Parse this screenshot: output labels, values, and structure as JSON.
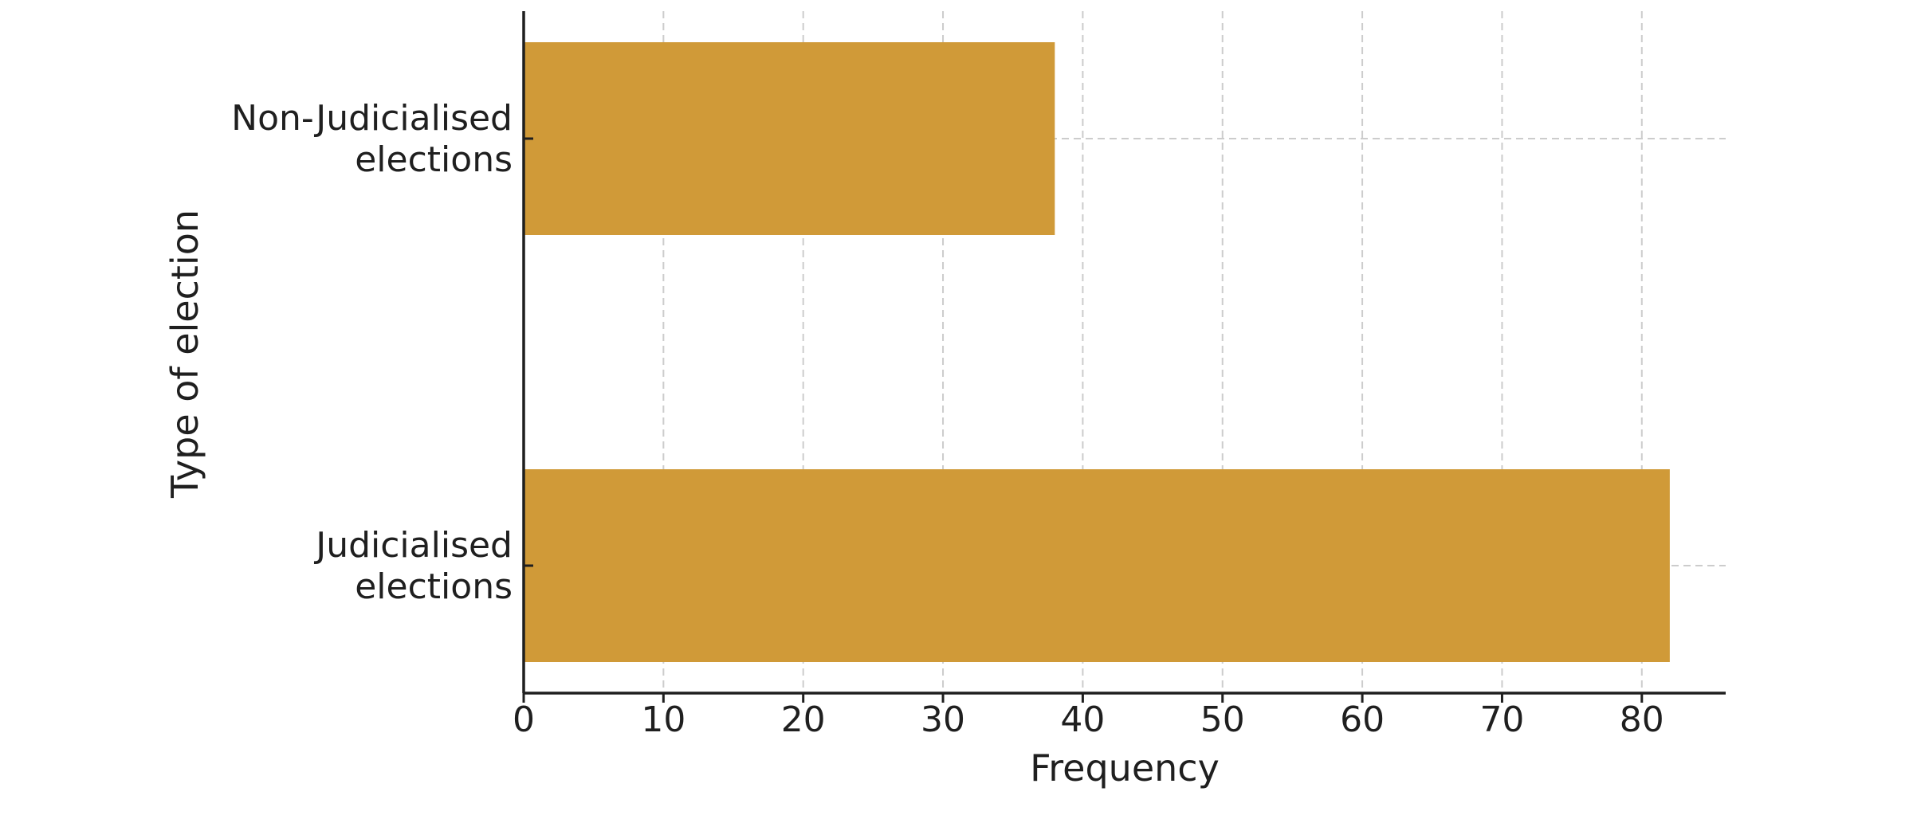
{
  "chart_data": {
    "type": "bar",
    "orientation": "horizontal",
    "title": "",
    "xlabel": "Frequency",
    "ylabel": "Type of election",
    "categories": [
      "Non-Judicialised\nelections",
      "Judicialised\nelections"
    ],
    "values": [
      38,
      82
    ],
    "xlim": [
      0,
      86
    ],
    "xticks": [
      0,
      10,
      20,
      30,
      40,
      50,
      60,
      70,
      80
    ],
    "bar_color": "#D09A38",
    "grid": true,
    "legend": "none"
  }
}
